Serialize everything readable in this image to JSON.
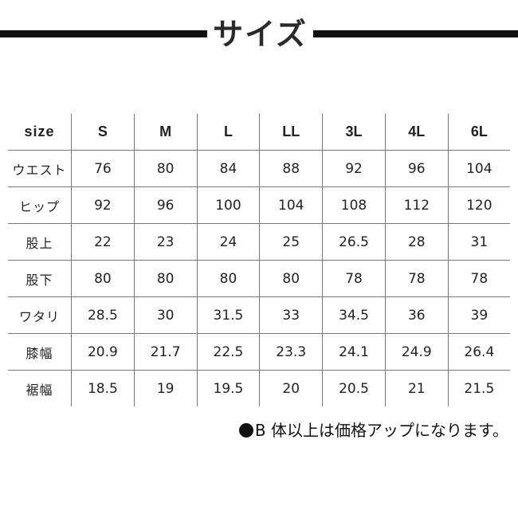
{
  "title": "サイズ",
  "table": {
    "header": [
      "size",
      "S",
      "M",
      "L",
      "LL",
      "3L",
      "4L",
      "6L"
    ],
    "rows": [
      [
        "ウエスト",
        "76",
        "80",
        "84",
        "88",
        "92",
        "96",
        "104"
      ],
      [
        "ヒップ",
        "92",
        "96",
        "100",
        "104",
        "108",
        "112",
        "120"
      ],
      [
        "股上",
        "22",
        "23",
        "24",
        "25",
        "26.5",
        "28",
        "31"
      ],
      [
        "股下",
        "80",
        "80",
        "80",
        "80",
        "78",
        "78",
        "78"
      ],
      [
        "ワタリ",
        "28.5",
        "30",
        "31.5",
        "33",
        "34.5",
        "36",
        "39"
      ],
      [
        "膝幅",
        "20.9",
        "21.7",
        "22.5",
        "23.3",
        "24.1",
        "24.9",
        "26.4"
      ],
      [
        "裾幅",
        "18.5",
        "19",
        "19.5",
        "20",
        "20.5",
        "21",
        "21.5"
      ]
    ]
  },
  "note": "B 体以上は価格アップになります。"
}
